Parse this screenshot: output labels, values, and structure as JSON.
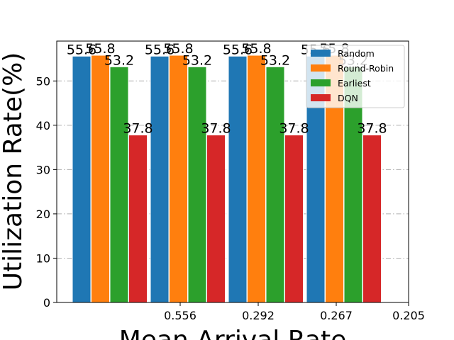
{
  "chart_data": {
    "type": "bar",
    "xlabel": "Mean Arrival Rate",
    "ylabel": "Utilization Rate(%)",
    "x_tick_labels": [
      "0.556",
      "0.292",
      "0.267",
      "0.205"
    ],
    "categories": [
      "1",
      "2",
      "3",
      "4"
    ],
    "ylim": [
      0,
      59
    ],
    "y_ticks": [
      0,
      10,
      20,
      30,
      40,
      50
    ],
    "grid": "horizontal dash-dot",
    "legend_position": "top-right",
    "series": [
      {
        "name": "Random",
        "color": "#1f77b4",
        "values": [
          55.6,
          55.6,
          55.6,
          55.6
        ],
        "labels": [
          "55.6",
          "55.6",
          "55.6",
          "55.6"
        ]
      },
      {
        "name": "Round-Robin",
        "color": "#ff7f0e",
        "values": [
          55.8,
          55.8,
          55.8,
          55.8
        ],
        "labels": [
          "55.8",
          "55.8",
          "55.8",
          "55.8"
        ]
      },
      {
        "name": "Earliest",
        "color": "#2ca02c",
        "values": [
          53.2,
          53.2,
          53.2,
          53.2
        ],
        "labels": [
          "53.2",
          "53.2",
          "53.2",
          "53.2"
        ]
      },
      {
        "name": "DQN",
        "color": "#d62728",
        "values": [
          37.8,
          37.8,
          37.8,
          37.8
        ],
        "labels": [
          "37.8",
          "37.8",
          "37.8",
          "37.8"
        ]
      }
    ]
  }
}
